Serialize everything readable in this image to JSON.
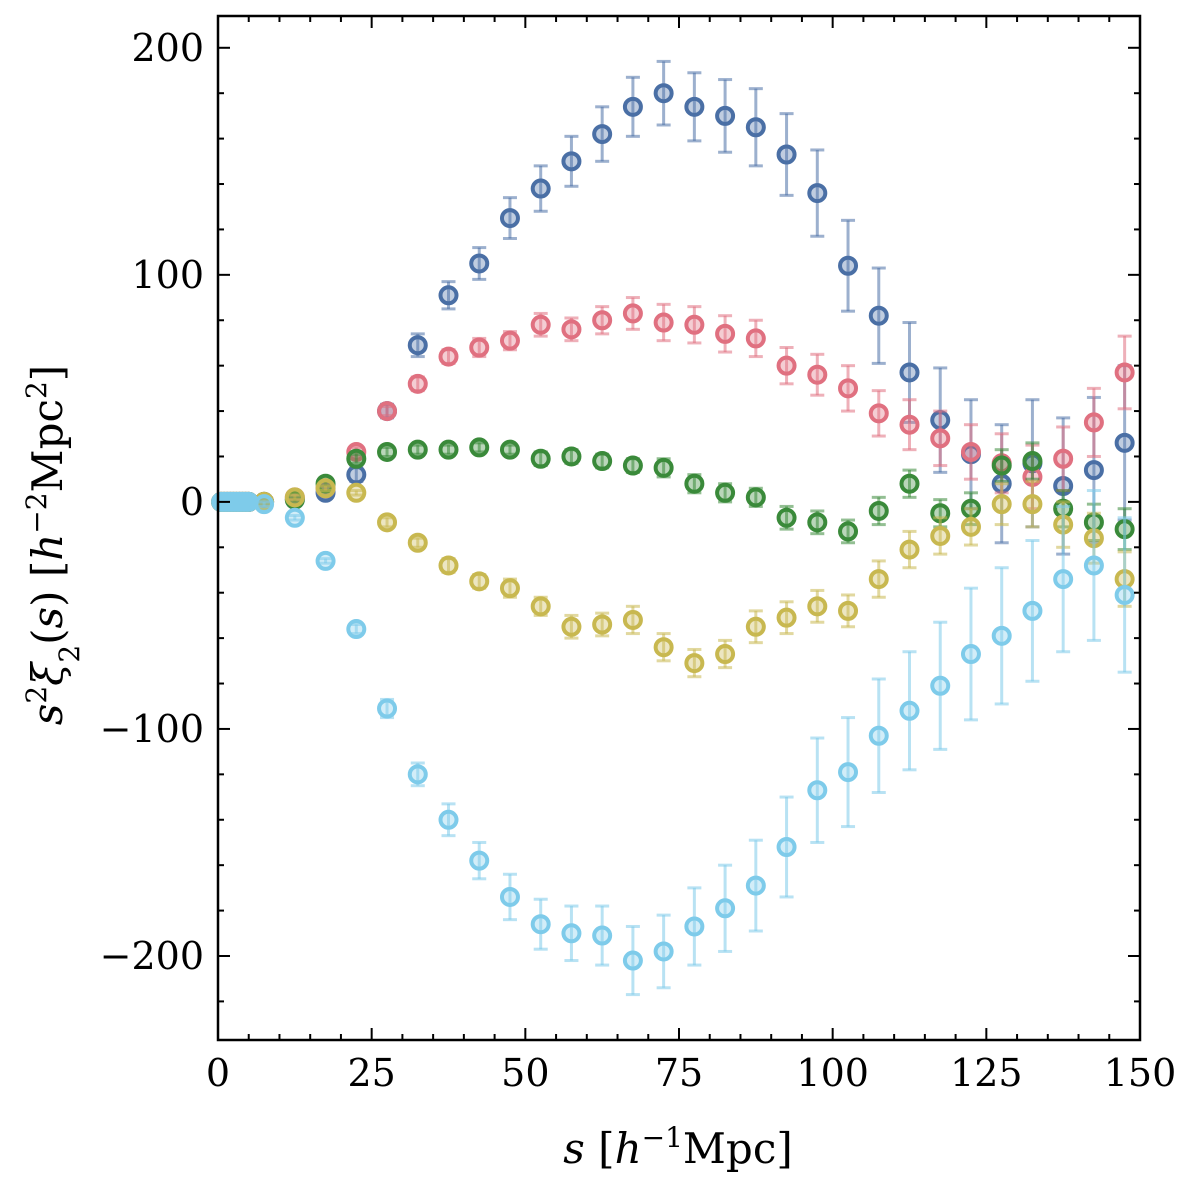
{
  "chart_data": {
    "type": "scatter",
    "title": "",
    "xlabel": "s [h⁻¹Mpc]",
    "ylabel": "s²ξ₂(s) [h⁻²Mpc²]",
    "xlim": [
      0,
      150
    ],
    "ylim": [
      -237,
      214
    ],
    "xticks": [
      "0",
      "25",
      "50",
      "75",
      "100",
      "125",
      "150"
    ],
    "yticks": [
      "200",
      "100",
      "0",
      "−100",
      "−200"
    ],
    "xtick_values": [
      0,
      25,
      50,
      75,
      100,
      125,
      150
    ],
    "ytick_values": [
      200,
      100,
      0,
      -100,
      -200
    ],
    "grid": false,
    "series": [
      {
        "name": "series-blue",
        "color": "#4a6fa5",
        "x": [
          0.5,
          1,
          1.5,
          2,
          2.5,
          3,
          3.5,
          4,
          4.5,
          5,
          7.5,
          12.5,
          17.5,
          22.5,
          27.5,
          32.5,
          37.5,
          42.5,
          47.5,
          52.5,
          57.5,
          62.5,
          67.5,
          72.5,
          77.5,
          82.5,
          87.5,
          92.5,
          97.5,
          102.5,
          107.5,
          112.5,
          117.5,
          122.5,
          127.5,
          132.5,
          137.5,
          142.5,
          147.5
        ],
        "y": [
          0,
          0,
          0,
          0,
          0,
          0,
          0,
          0,
          0,
          0,
          0,
          1,
          4,
          12,
          40,
          69,
          91,
          105,
          125,
          138,
          150,
          162,
          174,
          180,
          174,
          170,
          165,
          153,
          136,
          104,
          82,
          57,
          36,
          21,
          8,
          17,
          7,
          14,
          26
        ],
        "err": [
          0,
          0,
          0,
          0,
          0,
          0,
          0,
          0,
          0,
          0,
          1,
          1,
          2,
          3,
          3,
          5,
          6,
          7,
          9,
          10,
          11,
          12,
          13,
          14,
          15,
          16,
          17,
          18,
          19,
          20,
          21,
          22,
          23,
          24,
          26,
          28,
          30,
          32,
          34
        ]
      },
      {
        "name": "series-red",
        "color": "#e07080",
        "x": [
          0.5,
          1,
          1.5,
          2,
          2.5,
          3,
          3.5,
          4,
          4.5,
          5,
          7.5,
          12.5,
          17.5,
          22.5,
          27.5,
          32.5,
          37.5,
          42.5,
          47.5,
          52.5,
          57.5,
          62.5,
          67.5,
          72.5,
          77.5,
          82.5,
          87.5,
          92.5,
          97.5,
          102.5,
          107.5,
          112.5,
          117.5,
          122.5,
          127.5,
          132.5,
          137.5,
          142.5,
          147.5
        ],
        "y": [
          0,
          0,
          0,
          0,
          0,
          0,
          0,
          0,
          0,
          0,
          0,
          2,
          6,
          22,
          40,
          52,
          64,
          68,
          71,
          78,
          76,
          80,
          83,
          79,
          78,
          74,
          72,
          60,
          56,
          50,
          39,
          34,
          28,
          22,
          17,
          11,
          19,
          35,
          57
        ],
        "err": [
          0,
          0,
          0,
          0,
          0,
          0,
          0,
          0,
          0,
          0,
          1,
          1,
          1,
          2,
          2,
          3,
          3,
          4,
          4,
          5,
          5,
          6,
          7,
          8,
          8,
          8,
          8,
          8,
          9,
          10,
          10,
          11,
          12,
          12,
          13,
          14,
          14,
          15,
          16
        ]
      },
      {
        "name": "series-green",
        "color": "#3a8a3a",
        "x": [
          0.5,
          1,
          1.5,
          2,
          2.5,
          3,
          3.5,
          4,
          4.5,
          5,
          7.5,
          12.5,
          17.5,
          22.5,
          27.5,
          32.5,
          37.5,
          42.5,
          47.5,
          52.5,
          57.5,
          62.5,
          67.5,
          72.5,
          77.5,
          82.5,
          87.5,
          92.5,
          97.5,
          102.5,
          107.5,
          112.5,
          117.5,
          122.5,
          127.5,
          132.5,
          137.5,
          142.5,
          147.5
        ],
        "y": [
          0,
          0,
          0,
          0,
          0,
          0,
          0,
          0,
          0,
          0,
          0,
          1,
          8,
          19,
          22,
          23,
          23,
          24,
          23,
          19,
          20,
          18,
          16,
          15,
          8,
          4,
          2,
          -7,
          -9,
          -13,
          -4,
          8,
          -5,
          -3,
          16,
          18,
          -3,
          -9,
          -12
        ],
        "err": [
          0,
          0,
          0,
          0,
          0,
          0,
          0,
          0,
          0,
          0,
          1,
          1,
          1,
          2,
          2,
          2,
          2,
          2,
          2,
          3,
          3,
          3,
          3,
          4,
          4,
          4,
          4,
          5,
          5,
          5,
          6,
          6,
          6,
          7,
          7,
          8,
          8,
          8,
          9
        ]
      },
      {
        "name": "series-yellow",
        "color": "#c8b850",
        "x": [
          0.5,
          1,
          1.5,
          2,
          2.5,
          3,
          3.5,
          4,
          4.5,
          5,
          7.5,
          12.5,
          17.5,
          22.5,
          27.5,
          32.5,
          37.5,
          42.5,
          47.5,
          52.5,
          57.5,
          62.5,
          67.5,
          72.5,
          77.5,
          82.5,
          87.5,
          92.5,
          97.5,
          102.5,
          107.5,
          112.5,
          117.5,
          122.5,
          127.5,
          132.5,
          137.5,
          142.5,
          147.5
        ],
        "y": [
          0,
          0,
          0,
          0,
          0,
          0,
          0,
          0,
          0,
          0,
          0,
          2,
          6,
          4,
          -9,
          -18,
          -28,
          -35,
          -38,
          -46,
          -55,
          -54,
          -52,
          -64,
          -71,
          -67,
          -55,
          -51,
          -46,
          -48,
          -34,
          -21,
          -15,
          -11,
          -1,
          -1,
          -10,
          -16,
          -34
        ],
        "err": [
          0,
          0,
          0,
          0,
          0,
          0,
          0,
          0,
          0,
          0,
          1,
          1,
          1,
          1,
          2,
          2,
          3,
          3,
          4,
          4,
          5,
          5,
          6,
          6,
          6,
          6,
          7,
          7,
          7,
          7,
          8,
          8,
          8,
          8,
          9,
          10,
          10,
          11,
          12
        ]
      },
      {
        "name": "series-cyan",
        "color": "#7ecbea",
        "x": [
          0.5,
          1,
          1.5,
          2,
          2.5,
          3,
          3.5,
          4,
          4.5,
          5,
          7.5,
          12.5,
          17.5,
          22.5,
          27.5,
          32.5,
          37.5,
          42.5,
          47.5,
          52.5,
          57.5,
          62.5,
          67.5,
          72.5,
          77.5,
          82.5,
          87.5,
          92.5,
          97.5,
          102.5,
          107.5,
          112.5,
          117.5,
          122.5,
          127.5,
          132.5,
          137.5,
          142.5,
          147.5
        ],
        "y": [
          0,
          0,
          0,
          0,
          0,
          0,
          0,
          0,
          0,
          0,
          -1,
          -7,
          -26,
          -56,
          -91,
          -120,
          -140,
          -158,
          -174,
          -186,
          -190,
          -191,
          -202,
          -198,
          -187,
          -179,
          -169,
          -152,
          -127,
          -119,
          -103,
          -92,
          -81,
          -67,
          -59,
          -48,
          -34,
          -28,
          -41
        ],
        "err": [
          0,
          0,
          0,
          0,
          0,
          0,
          0,
          0,
          0,
          0,
          1,
          1,
          1,
          2,
          4,
          5,
          7,
          8,
          10,
          11,
          12,
          13,
          15,
          16,
          17,
          19,
          20,
          22,
          23,
          24,
          25,
          26,
          28,
          29,
          30,
          31,
          32,
          33,
          34
        ]
      }
    ]
  }
}
